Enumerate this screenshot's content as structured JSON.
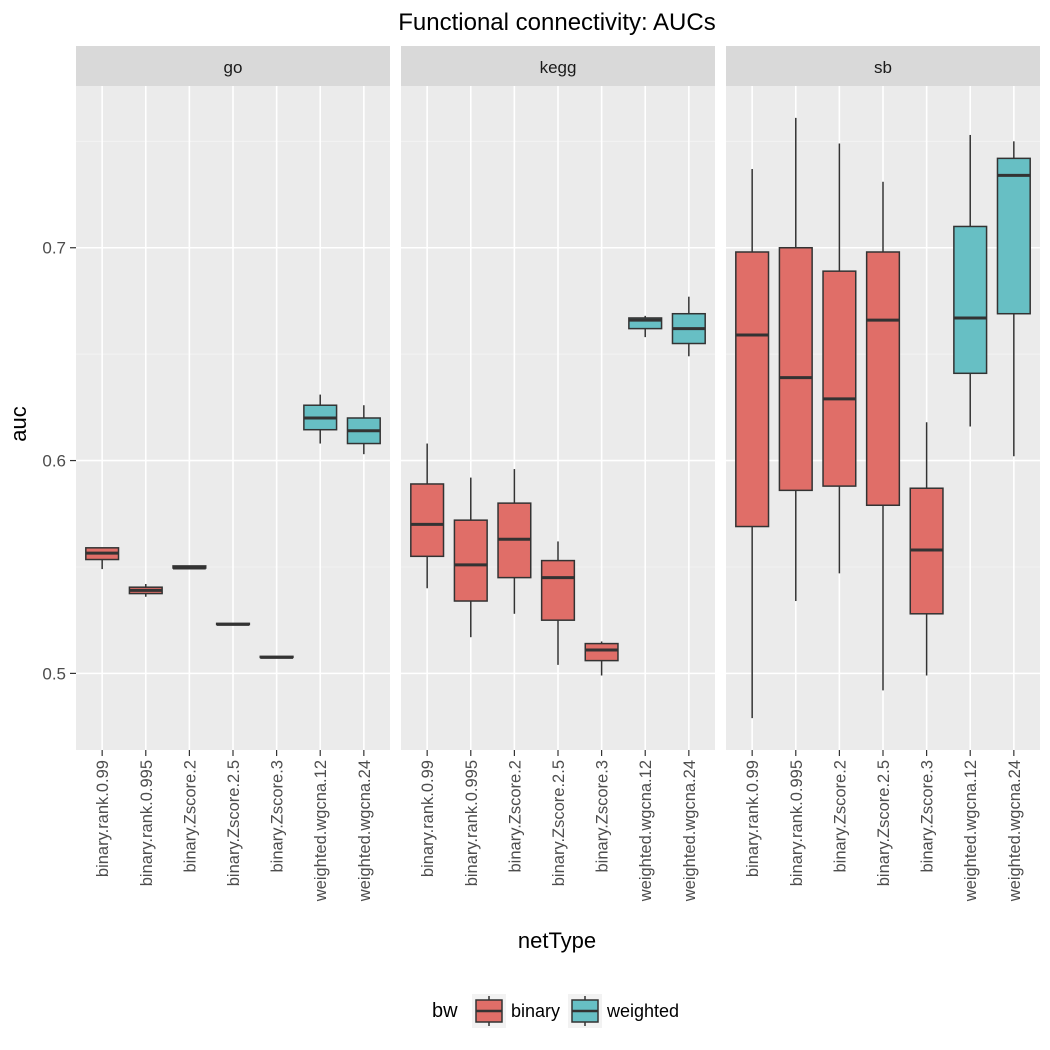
{
  "chart_data": {
    "type": "boxplot",
    "title": "Functional connectivity: AUCs",
    "xlabel": "netType",
    "ylabel": "auc",
    "ylim": [
      0.464,
      0.776
    ],
    "y_ticks": [
      0.5,
      0.6,
      0.7
    ],
    "y_tick_labels": [
      "0.5",
      "0.6",
      "0.7"
    ],
    "grid": true,
    "legend_position": "bottom",
    "legend": {
      "title": "bw",
      "entries": [
        {
          "label": "binary",
          "color": "#E06E68"
        },
        {
          "label": "weighted",
          "color": "#67BFC4"
        }
      ]
    },
    "categories": [
      "binary.rank.0.99",
      "binary.rank.0.995",
      "binary.Zscore.2",
      "binary.Zscore.2.5",
      "binary.Zscore.3",
      "weighted.wgcna.12",
      "weighted.wgcna.24"
    ],
    "category_group": [
      "binary",
      "binary",
      "binary",
      "binary",
      "binary",
      "weighted",
      "weighted"
    ],
    "panels": [
      {
        "name": "go",
        "boxes": [
          {
            "min": 0.549,
            "q1": 0.5535,
            "median": 0.5565,
            "q3": 0.559,
            "max": 0.559
          },
          {
            "min": 0.536,
            "q1": 0.5375,
            "median": 0.539,
            "q3": 0.5405,
            "max": 0.542
          },
          {
            "min": 0.5495,
            "q1": 0.5495,
            "median": 0.5495,
            "q3": 0.5505,
            "max": 0.5505
          },
          {
            "min": 0.523,
            "q1": 0.523,
            "median": 0.523,
            "q3": 0.5235,
            "max": 0.5235
          },
          {
            "min": 0.5075,
            "q1": 0.5075,
            "median": 0.5075,
            "q3": 0.508,
            "max": 0.508
          },
          {
            "min": 0.608,
            "q1": 0.6145,
            "median": 0.62,
            "q3": 0.626,
            "max": 0.631
          },
          {
            "min": 0.603,
            "q1": 0.608,
            "median": 0.614,
            "q3": 0.62,
            "max": 0.626
          }
        ]
      },
      {
        "name": "kegg",
        "boxes": [
          {
            "min": 0.54,
            "q1": 0.555,
            "median": 0.57,
            "q3": 0.589,
            "max": 0.608
          },
          {
            "min": 0.517,
            "q1": 0.534,
            "median": 0.551,
            "q3": 0.572,
            "max": 0.592
          },
          {
            "min": 0.528,
            "q1": 0.545,
            "median": 0.563,
            "q3": 0.58,
            "max": 0.596
          },
          {
            "min": 0.504,
            "q1": 0.525,
            "median": 0.545,
            "q3": 0.553,
            "max": 0.562
          },
          {
            "min": 0.499,
            "q1": 0.506,
            "median": 0.511,
            "q3": 0.514,
            "max": 0.515
          },
          {
            "min": 0.658,
            "q1": 0.662,
            "median": 0.666,
            "q3": 0.667,
            "max": 0.668
          },
          {
            "min": 0.649,
            "q1": 0.655,
            "median": 0.662,
            "q3": 0.669,
            "max": 0.677
          }
        ]
      },
      {
        "name": "sb",
        "boxes": [
          {
            "min": 0.479,
            "q1": 0.569,
            "median": 0.659,
            "q3": 0.698,
            "max": 0.737
          },
          {
            "min": 0.534,
            "q1": 0.586,
            "median": 0.639,
            "q3": 0.7,
            "max": 0.761
          },
          {
            "min": 0.547,
            "q1": 0.588,
            "median": 0.629,
            "q3": 0.689,
            "max": 0.749
          },
          {
            "min": 0.492,
            "q1": 0.579,
            "median": 0.666,
            "q3": 0.698,
            "max": 0.731
          },
          {
            "min": 0.499,
            "q1": 0.528,
            "median": 0.558,
            "q3": 0.587,
            "max": 0.618
          },
          {
            "min": 0.616,
            "q1": 0.641,
            "median": 0.667,
            "q3": 0.71,
            "max": 0.753
          },
          {
            "min": 0.602,
            "q1": 0.669,
            "median": 0.734,
            "q3": 0.742,
            "max": 0.75
          }
        ]
      }
    ]
  }
}
